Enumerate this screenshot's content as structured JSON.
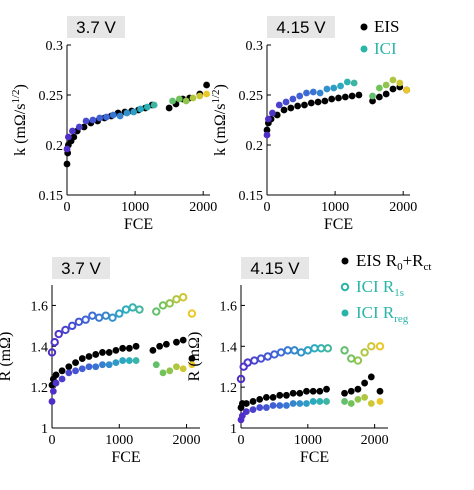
{
  "legend_top": [
    {
      "label": "EIS",
      "color": "#000000",
      "marker": "filled"
    },
    {
      "label": "ICI",
      "color": "#2bb5a8",
      "marker": "filled"
    }
  ],
  "legend_bottom": [
    {
      "label": "EIS R",
      "sub1": "0",
      "plus": "+R",
      "sub2": "ct",
      "color": "#000000",
      "marker": "filled"
    },
    {
      "label": "ICI R",
      "sub1": "1s",
      "color": "#2bb5a8",
      "marker": "ring"
    },
    {
      "label": "ICI R",
      "sub1": "reg",
      "color": "#2bb5a8",
      "marker": "filled"
    }
  ],
  "chart_data": [
    {
      "type": "scatter",
      "panel": "k-3.7V",
      "title": "3.7 V",
      "xlabel": "FCE",
      "ylabel": "k (mΩ/s",
      "ylabel_sup": "1/2",
      "ylabel_close": ")",
      "xlim": [
        0,
        2100
      ],
      "ylim": [
        0.15,
        0.3
      ],
      "xticks": [
        "0",
        "1000",
        "2000"
      ],
      "yticks": [
        "0.15",
        "0.2",
        "0.25",
        "0.3"
      ],
      "series": [
        {
          "name": "EIS",
          "values": [
            [
              0,
              0.181
            ],
            [
              10,
              0.192
            ],
            [
              20,
              0.2
            ],
            [
              60,
              0.204
            ],
            [
              100,
              0.208
            ],
            [
              150,
              0.214
            ],
            [
              250,
              0.218
            ],
            [
              350,
              0.222
            ],
            [
              450,
              0.224
            ],
            [
              550,
              0.227
            ],
            [
              650,
              0.229
            ],
            [
              750,
              0.232
            ],
            [
              850,
              0.233
            ],
            [
              950,
              0.234
            ],
            [
              1050,
              0.235
            ],
            [
              1150,
              0.237
            ],
            [
              1250,
              0.24
            ],
            [
              1500,
              0.237
            ],
            [
              1600,
              0.241
            ],
            [
              1700,
              0.246
            ],
            [
              1800,
              0.247
            ],
            [
              1950,
              0.251
            ],
            [
              2050,
              0.26
            ]
          ]
        },
        {
          "name": "ICI",
          "values": [
            [
              0,
              0.196
            ],
            [
              20,
              0.208
            ],
            [
              80,
              0.214
            ],
            [
              180,
              0.218
            ],
            [
              280,
              0.224
            ],
            [
              380,
              0.225
            ],
            [
              480,
              0.227
            ],
            [
              580,
              0.228
            ],
            [
              680,
              0.23
            ],
            [
              780,
              0.229
            ],
            [
              880,
              0.232
            ],
            [
              980,
              0.233
            ],
            [
              1080,
              0.236
            ],
            [
              1180,
              0.238
            ],
            [
              1280,
              0.24
            ],
            [
              1550,
              0.244
            ],
            [
              1650,
              0.246
            ],
            [
              1750,
              0.244
            ],
            [
              1850,
              0.247
            ],
            [
              1950,
              0.249
            ],
            [
              2050,
              0.251
            ]
          ]
        }
      ]
    },
    {
      "type": "scatter",
      "panel": "k-4.15V",
      "title": "4.15 V",
      "xlabel": "FCE",
      "ylabel": "k (mΩ/s",
      "ylabel_sup": "1/2",
      "ylabel_close": ")",
      "xlim": [
        0,
        2100
      ],
      "ylim": [
        0.15,
        0.3
      ],
      "xticks": [
        "0",
        "1000",
        "2000"
      ],
      "yticks": [
        "0.15",
        "0.2",
        "0.25",
        "0.3"
      ],
      "series": [
        {
          "name": "EIS",
          "values": [
            [
              0,
              0.215
            ],
            [
              20,
              0.222
            ],
            [
              60,
              0.226
            ],
            [
              150,
              0.23
            ],
            [
              250,
              0.235
            ],
            [
              350,
              0.237
            ],
            [
              450,
              0.239
            ],
            [
              550,
              0.24
            ],
            [
              650,
              0.242
            ],
            [
              750,
              0.243
            ],
            [
              850,
              0.244
            ],
            [
              950,
              0.246
            ],
            [
              1050,
              0.247
            ],
            [
              1150,
              0.248
            ],
            [
              1250,
              0.249
            ],
            [
              1350,
              0.25
            ],
            [
              1550,
              0.244
            ],
            [
              1650,
              0.248
            ],
            [
              1750,
              0.251
            ],
            [
              1850,
              0.256
            ],
            [
              1950,
              0.258
            ],
            [
              2050,
              0.255
            ]
          ]
        },
        {
          "name": "ICI",
          "values": [
            [
              0,
              0.21
            ],
            [
              20,
              0.226
            ],
            [
              80,
              0.232
            ],
            [
              180,
              0.24
            ],
            [
              280,
              0.243
            ],
            [
              380,
              0.246
            ],
            [
              480,
              0.249
            ],
            [
              580,
              0.252
            ],
            [
              680,
              0.253
            ],
            [
              780,
              0.252
            ],
            [
              880,
              0.256
            ],
            [
              980,
              0.257
            ],
            [
              1080,
              0.259
            ],
            [
              1180,
              0.263
            ],
            [
              1280,
              0.262
            ],
            [
              1550,
              0.249
            ],
            [
              1650,
              0.257
            ],
            [
              1750,
              0.26
            ],
            [
              1850,
              0.265
            ],
            [
              1950,
              0.262
            ],
            [
              2050,
              0.255
            ]
          ]
        }
      ]
    },
    {
      "type": "scatter",
      "panel": "R-3.7V",
      "title": "3.7 V",
      "xlabel": "FCE",
      "ylabel": "R (mΩ)",
      "xlim": [
        0,
        2200
      ],
      "ylim": [
        1.0,
        1.7
      ],
      "xticks": [
        "0",
        "1000",
        "2000"
      ],
      "yticks": [
        "1",
        "1.2",
        "1.4",
        "1.6"
      ],
      "series": [
        {
          "name": "EIS R0+Rct",
          "values": [
            [
              0,
              1.21
            ],
            [
              20,
              1.24
            ],
            [
              60,
              1.26
            ],
            [
              150,
              1.28
            ],
            [
              250,
              1.3
            ],
            [
              350,
              1.32
            ],
            [
              450,
              1.34
            ],
            [
              550,
              1.35
            ],
            [
              650,
              1.36
            ],
            [
              750,
              1.37
            ],
            [
              850,
              1.37
            ],
            [
              950,
              1.38
            ],
            [
              1050,
              1.39
            ],
            [
              1150,
              1.39
            ],
            [
              1250,
              1.4
            ],
            [
              1500,
              1.38
            ],
            [
              1600,
              1.4
            ],
            [
              1700,
              1.41
            ],
            [
              1850,
              1.42
            ],
            [
              1950,
              1.43
            ],
            [
              2080,
              1.34
            ]
          ]
        },
        {
          "name": "ICI R1s",
          "values": [
            [
              0,
              1.37
            ],
            [
              40,
              1.42
            ],
            [
              100,
              1.46
            ],
            [
              200,
              1.48
            ],
            [
              300,
              1.5
            ],
            [
              400,
              1.52
            ],
            [
              500,
              1.53
            ],
            [
              600,
              1.55
            ],
            [
              700,
              1.54
            ],
            [
              800,
              1.55
            ],
            [
              900,
              1.54
            ],
            [
              1000,
              1.56
            ],
            [
              1100,
              1.58
            ],
            [
              1200,
              1.59
            ],
            [
              1300,
              1.58
            ],
            [
              1550,
              1.57
            ],
            [
              1650,
              1.6
            ],
            [
              1750,
              1.61
            ],
            [
              1850,
              1.63
            ],
            [
              1950,
              1.64
            ],
            [
              2080,
              1.56
            ]
          ]
        },
        {
          "name": "ICI Rreg",
          "values": [
            [
              0,
              1.13
            ],
            [
              20,
              1.18
            ],
            [
              60,
              1.22
            ],
            [
              150,
              1.24
            ],
            [
              250,
              1.27
            ],
            [
              350,
              1.28
            ],
            [
              450,
              1.29
            ],
            [
              550,
              1.3
            ],
            [
              650,
              1.3
            ],
            [
              750,
              1.31
            ],
            [
              850,
              1.31
            ],
            [
              950,
              1.32
            ],
            [
              1050,
              1.33
            ],
            [
              1150,
              1.33
            ],
            [
              1250,
              1.33
            ],
            [
              1550,
              1.31
            ],
            [
              1650,
              1.27
            ],
            [
              1750,
              1.28
            ],
            [
              1850,
              1.3
            ],
            [
              1950,
              1.29
            ],
            [
              2080,
              1.31
            ]
          ]
        }
      ]
    },
    {
      "type": "scatter",
      "panel": "R-4.15V",
      "title": "4.15 V",
      "xlabel": "FCE",
      "ylabel": "R (mΩ)",
      "xlim": [
        0,
        2200
      ],
      "ylim": [
        1.0,
        1.7
      ],
      "xticks": [
        "0",
        "1000",
        "2000"
      ],
      "yticks": [
        "1",
        "1.2",
        "1.4",
        "1.6"
      ],
      "series": [
        {
          "name": "EIS R0+Rct",
          "values": [
            [
              0,
              1.1
            ],
            [
              20,
              1.12
            ],
            [
              80,
              1.12
            ],
            [
              180,
              1.13
            ],
            [
              280,
              1.14
            ],
            [
              380,
              1.15
            ],
            [
              480,
              1.15
            ],
            [
              580,
              1.16
            ],
            [
              680,
              1.16
            ],
            [
              780,
              1.17
            ],
            [
              880,
              1.17
            ],
            [
              980,
              1.18
            ],
            [
              1080,
              1.18
            ],
            [
              1180,
              1.18
            ],
            [
              1280,
              1.19
            ],
            [
              1550,
              1.17
            ],
            [
              1650,
              1.18
            ],
            [
              1750,
              1.19
            ],
            [
              1850,
              1.22
            ],
            [
              1950,
              1.25
            ],
            [
              2080,
              1.18
            ]
          ]
        },
        {
          "name": "ICI R1s",
          "values": [
            [
              0,
              1.24
            ],
            [
              40,
              1.3
            ],
            [
              100,
              1.32
            ],
            [
              200,
              1.33
            ],
            [
              300,
              1.34
            ],
            [
              400,
              1.35
            ],
            [
              500,
              1.36
            ],
            [
              600,
              1.37
            ],
            [
              700,
              1.38
            ],
            [
              800,
              1.38
            ],
            [
              900,
              1.37
            ],
            [
              1000,
              1.38
            ],
            [
              1100,
              1.39
            ],
            [
              1200,
              1.39
            ],
            [
              1300,
              1.39
            ],
            [
              1550,
              1.38
            ],
            [
              1650,
              1.34
            ],
            [
              1750,
              1.33
            ],
            [
              1850,
              1.37
            ],
            [
              1950,
              1.4
            ],
            [
              2080,
              1.4
            ]
          ]
        },
        {
          "name": "ICI Rreg",
          "values": [
            [
              0,
              1.04
            ],
            [
              20,
              1.06
            ],
            [
              80,
              1.08
            ],
            [
              180,
              1.09
            ],
            [
              280,
              1.1
            ],
            [
              380,
              1.1
            ],
            [
              480,
              1.11
            ],
            [
              580,
              1.11
            ],
            [
              680,
              1.11
            ],
            [
              780,
              1.12
            ],
            [
              880,
              1.12
            ],
            [
              980,
              1.12
            ],
            [
              1080,
              1.13
            ],
            [
              1180,
              1.13
            ],
            [
              1280,
              1.13
            ],
            [
              1550,
              1.13
            ],
            [
              1650,
              1.12
            ],
            [
              1750,
              1.14
            ],
            [
              1850,
              1.15
            ],
            [
              1950,
              1.12
            ],
            [
              2080,
              1.13
            ]
          ]
        }
      ]
    }
  ]
}
